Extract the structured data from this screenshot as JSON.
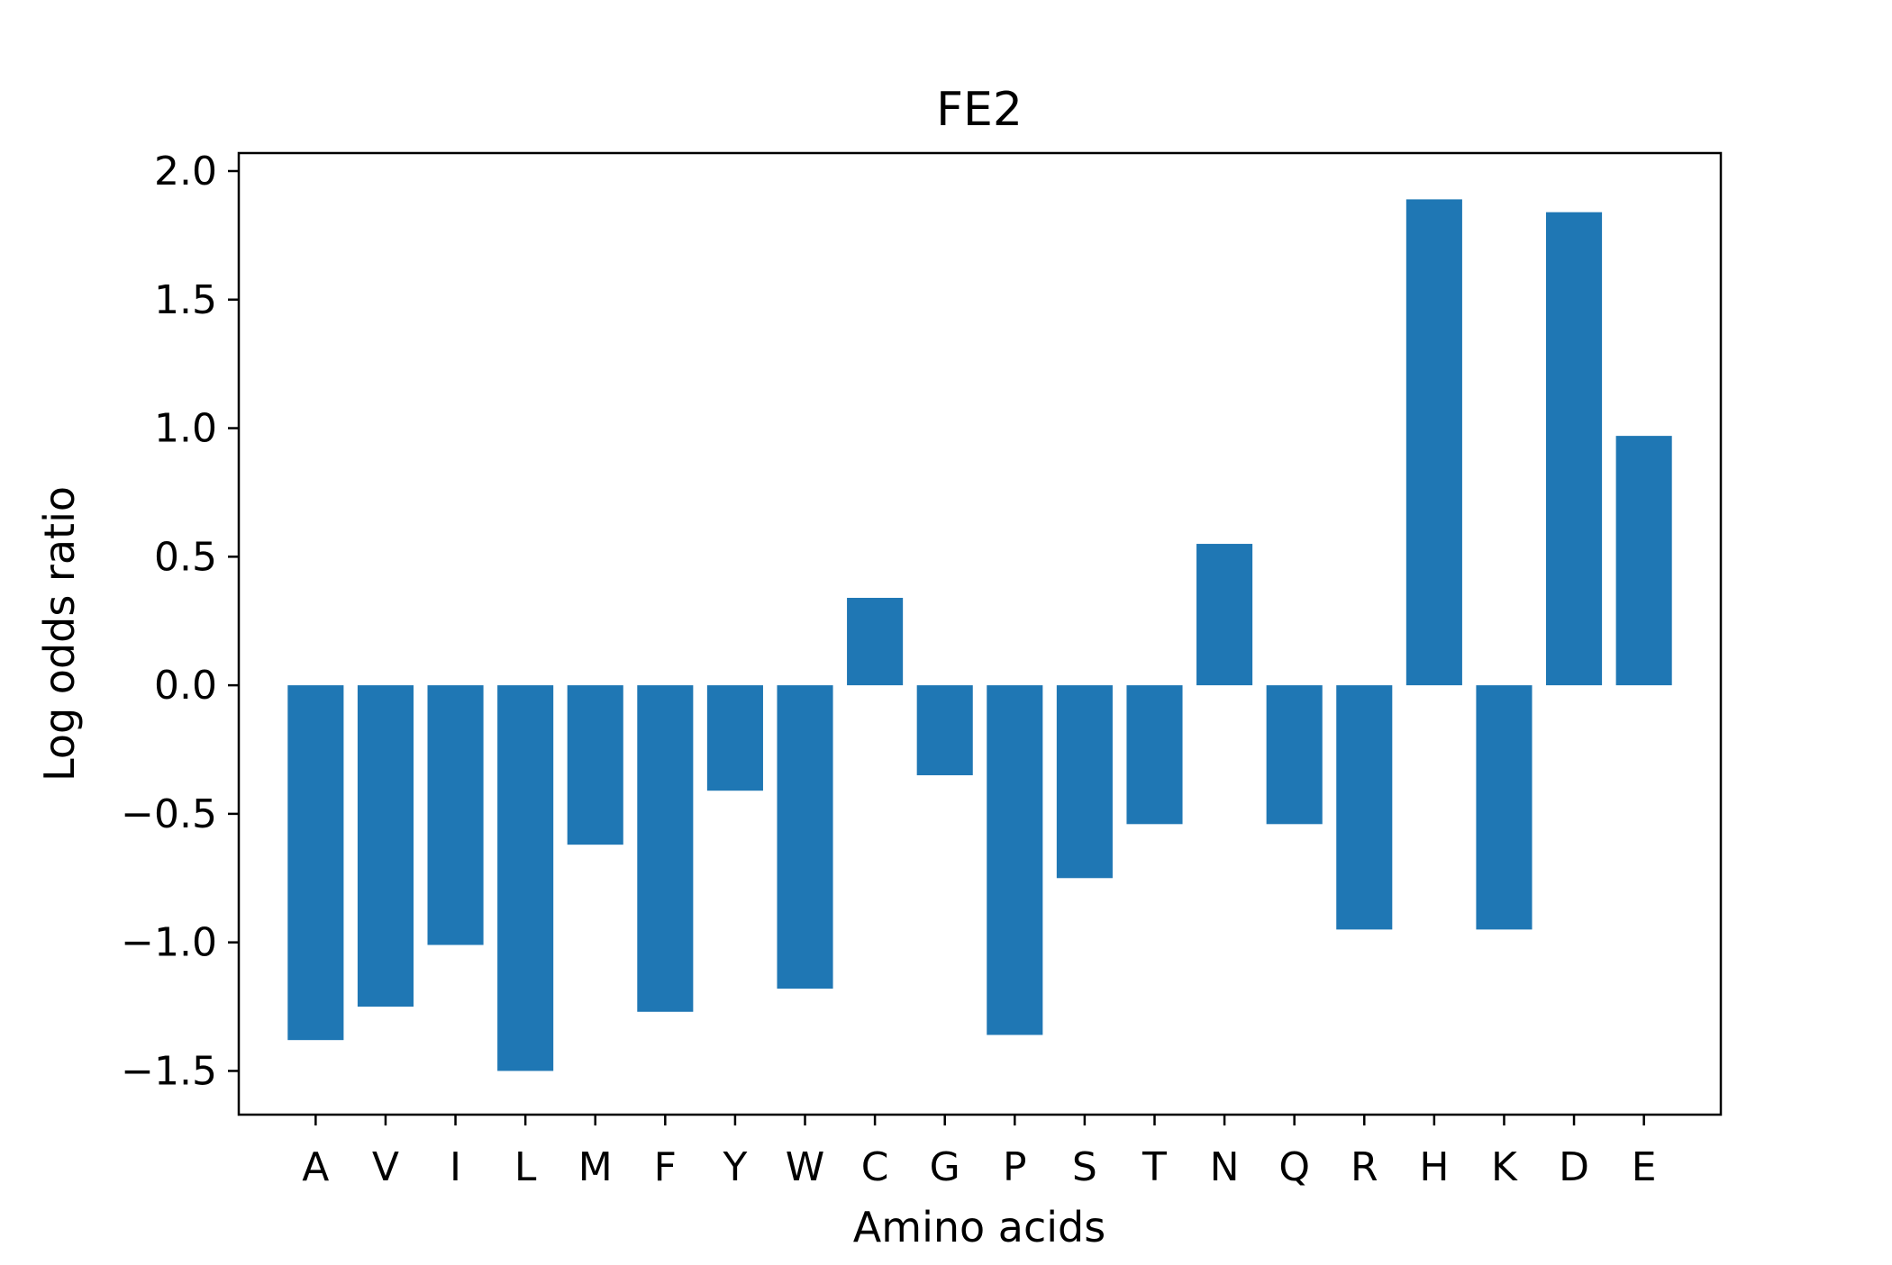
{
  "chart_data": {
    "type": "bar",
    "title": "FE2",
    "xlabel": "Amino acids",
    "ylabel": "Log odds ratio",
    "categories": [
      "A",
      "V",
      "I",
      "L",
      "M",
      "F",
      "Y",
      "W",
      "C",
      "G",
      "P",
      "S",
      "T",
      "N",
      "Q",
      "R",
      "H",
      "K",
      "D",
      "E"
    ],
    "values": [
      -1.38,
      -1.25,
      -1.01,
      -1.5,
      -0.62,
      -1.27,
      -0.41,
      -1.18,
      0.34,
      -0.35,
      -1.36,
      -0.75,
      -0.54,
      0.55,
      -0.54,
      -0.95,
      1.89,
      -0.95,
      1.84,
      0.97
    ],
    "ylim": [
      -1.67,
      2.07
    ],
    "yticks": [
      2.0,
      1.5,
      1.0,
      0.5,
      0.0,
      -0.5,
      -1.0,
      -1.5
    ],
    "ytick_labels": [
      "2.0",
      "1.5",
      "1.0",
      "0.5",
      "0.0",
      "−0.5",
      "−1.0",
      "−1.5"
    ],
    "bar_color": "#1f77b4",
    "grid": false,
    "legend": "none"
  }
}
